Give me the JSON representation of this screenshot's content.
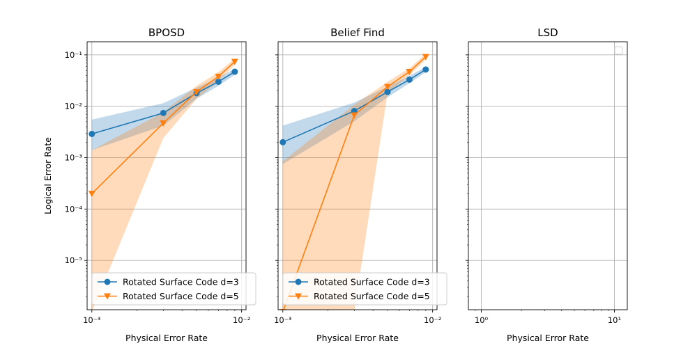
{
  "colors": {
    "series1": "#1f77b4",
    "series2": "#ff7f0e",
    "grid": "#b0b0b0"
  },
  "chart_data": [
    {
      "type": "line",
      "title": "BPOSD",
      "xlabel": "Physical Error Rate",
      "ylabel": "Logical Error Rate",
      "xscale": "log",
      "yscale": "log",
      "xlim": [
        0.00093,
        0.0107
      ],
      "ylim": [
        1.1e-06,
        0.18
      ],
      "xticks": [
        {
          "value": 0.001,
          "label": "10⁻³"
        },
        {
          "value": 0.01,
          "label": "10⁻²"
        }
      ],
      "yticks": [
        {
          "value": 1e-05,
          "label": "10⁻⁵"
        },
        {
          "value": 0.0001,
          "label": "10⁻⁴"
        },
        {
          "value": 0.001,
          "label": "10⁻³"
        },
        {
          "value": 0.01,
          "label": "10⁻²"
        },
        {
          "value": 0.1,
          "label": "10⁻¹"
        }
      ],
      "grid": true,
      "legend": "lower-left",
      "series": [
        {
          "name": "Rotated Surface Code d=3",
          "color": "#1f77b4",
          "marker": "circle",
          "x": [
            0.001,
            0.003,
            0.005,
            0.007,
            0.009
          ],
          "y": [
            0.0029,
            0.0074,
            0.018,
            0.03,
            0.047
          ],
          "lower": [
            0.0014,
            0.0042,
            0.014,
            0.025,
            0.041
          ],
          "upper": [
            0.0055,
            0.0115,
            0.023,
            0.036,
            0.054
          ]
        },
        {
          "name": "Rotated Surface Code d=5",
          "color": "#ff7f0e",
          "marker": "triangle-down",
          "x": [
            0.001,
            0.003,
            0.005,
            0.007,
            0.009
          ],
          "y": [
            0.0002,
            0.0047,
            0.019,
            0.038,
            0.074
          ],
          "lower": [
            1e-06,
            0.0024,
            0.014,
            0.031,
            0.064
          ],
          "upper": [
            0.0014,
            0.0076,
            0.025,
            0.046,
            0.085
          ]
        }
      ]
    },
    {
      "type": "line",
      "title": "Belief Find",
      "xlabel": "Physical Error Rate",
      "ylabel": "",
      "xscale": "log",
      "yscale": "log",
      "xlim": [
        0.00093,
        0.0107
      ],
      "ylim": [
        1.1e-06,
        0.18
      ],
      "xticks": [
        {
          "value": 0.001,
          "label": "10⁻³"
        },
        {
          "value": 0.01,
          "label": "10⁻²"
        }
      ],
      "yticks": [
        {
          "value": 1e-05,
          "label": ""
        },
        {
          "value": 0.0001,
          "label": ""
        },
        {
          "value": 0.001,
          "label": ""
        },
        {
          "value": 0.01,
          "label": ""
        },
        {
          "value": 0.1,
          "label": ""
        }
      ],
      "grid": true,
      "legend": "lower-left",
      "series": [
        {
          "name": "Rotated Surface Code d=3",
          "color": "#1f77b4",
          "marker": "circle",
          "x": [
            0.001,
            0.003,
            0.005,
            0.007,
            0.009
          ],
          "y": [
            0.002,
            0.0081,
            0.019,
            0.033,
            0.052
          ],
          "lower": [
            0.00075,
            0.0051,
            0.015,
            0.028,
            0.046
          ],
          "upper": [
            0.0042,
            0.0118,
            0.024,
            0.039,
            0.059
          ]
        },
        {
          "name": "Rotated Surface Code d=5",
          "color": "#ff7f0e",
          "marker": "triangle-down",
          "x": [
            0.001,
            0.003,
            0.005,
            0.007,
            0.009
          ],
          "y": [
            1e-06,
            0.0067,
            0.024,
            0.047,
            0.092
          ],
          "lower": [
            1e-06,
            1e-06,
            0.018,
            0.04,
            0.081
          ],
          "upper": [
            0.00085,
            0.0107,
            0.03,
            0.055,
            0.105
          ]
        }
      ]
    },
    {
      "type": "line",
      "title": "LSD",
      "xlabel": "Physical Error Rate",
      "ylabel": "",
      "xscale": "log",
      "yscale": "log",
      "xlim": [
        0.8,
        12.5
      ],
      "ylim": [
        1.1e-06,
        0.18
      ],
      "xticks": [
        {
          "value": 1,
          "label": "10⁰"
        },
        {
          "value": 10,
          "label": "10¹"
        }
      ],
      "yticks": [
        {
          "value": 1e-05,
          "label": ""
        },
        {
          "value": 0.0001,
          "label": ""
        },
        {
          "value": 0.001,
          "label": ""
        },
        {
          "value": 0.01,
          "label": ""
        },
        {
          "value": 0.1,
          "label": ""
        }
      ],
      "grid": true,
      "legend": "top-right",
      "series": []
    }
  ]
}
